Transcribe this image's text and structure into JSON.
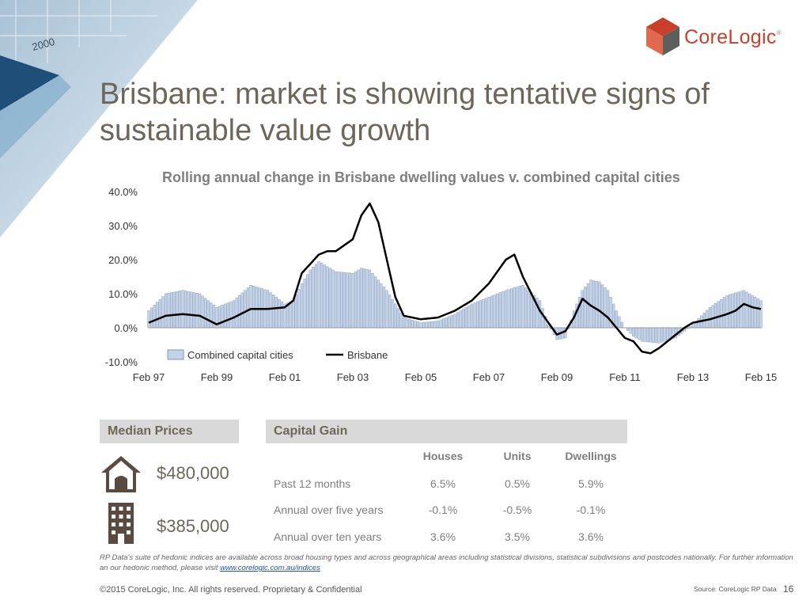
{
  "slide": {
    "title": "Brisbane: market is showing tentative signs of sustainable value growth",
    "logo_text": "CoreLogic",
    "logo_mark": "®",
    "corner_year": "2000",
    "page_number": "16",
    "copyright": "©2015 CoreLogic, Inc. All rights reserved. Proprietary & Confidential",
    "source": "Source: CoreLogic RP Data",
    "note_text": "RP Data's suite of hedonic indices are available across broad housing types and across geographical areas including statistical divisions, statistical subdivisions and postcodes nationally.  For further information an our hedonic method, please visit ",
    "note_link": "www.corelogic.com.au/indices"
  },
  "colors": {
    "title": "#6e6759",
    "bar_fill": "#c5d3e8",
    "bar_stroke": "#7f95b8",
    "line": "#000000",
    "logo": "#c8402b"
  },
  "median_prices": {
    "header": "Median Prices",
    "house_icon": "house-icon",
    "unit_icon": "apartment-building-icon",
    "house_price": "$480,000",
    "unit_price": "$385,000"
  },
  "capital_gain": {
    "header": "Capital Gain",
    "columns": [
      "Houses",
      "Units",
      "Dwellings"
    ],
    "rows": [
      {
        "label": "Past 12 months",
        "values": [
          "6.5%",
          "0.5%",
          "5.9%"
        ]
      },
      {
        "label": "Annual over five years",
        "values": [
          "-0.1%",
          "-0.5%",
          "-0.1%"
        ]
      },
      {
        "label": "Annual over ten years",
        "values": [
          "3.6%",
          "3.5%",
          "3.6%"
        ]
      }
    ]
  },
  "chart_data": {
    "type": "bar",
    "title": "Rolling annual change in Brisbane dwelling values v. combined capital cities",
    "x_labels": [
      "Feb 97",
      "Feb 99",
      "Feb 01",
      "Feb 03",
      "Feb 05",
      "Feb 07",
      "Feb 09",
      "Feb 11",
      "Feb 13",
      "Feb 15"
    ],
    "y_ticks": [
      "-10.0%",
      "0.0%",
      "10.0%",
      "20.0%",
      "30.0%",
      "40.0%"
    ],
    "ylim": [
      -10,
      40
    ],
    "legend": {
      "position": "bottom-left"
    },
    "grid": false,
    "series": [
      {
        "name": "Combined capital cities",
        "type": "bar",
        "points": [
          [
            "1997-02",
            5
          ],
          [
            "1997-08",
            10
          ],
          [
            "1998-02",
            11
          ],
          [
            "1998-08",
            10
          ],
          [
            "1999-02",
            6
          ],
          [
            "1999-08",
            8
          ],
          [
            "2000-02",
            12.5
          ],
          [
            "2000-08",
            11
          ],
          [
            "2001-02",
            7
          ],
          [
            "2001-05",
            8
          ],
          [
            "2001-08",
            13
          ],
          [
            "2001-11",
            17
          ],
          [
            "2002-02",
            19.5
          ],
          [
            "2002-05",
            18
          ],
          [
            "2002-08",
            16.5
          ],
          [
            "2003-02",
            16
          ],
          [
            "2003-05",
            17.5
          ],
          [
            "2003-08",
            17
          ],
          [
            "2004-02",
            11
          ],
          [
            "2004-08",
            3
          ],
          [
            "2005-02",
            1.5
          ],
          [
            "2005-08",
            2
          ],
          [
            "2006-02",
            4
          ],
          [
            "2006-08",
            7
          ],
          [
            "2007-02",
            9
          ],
          [
            "2007-08",
            11
          ],
          [
            "2008-02",
            12.5
          ],
          [
            "2008-08",
            8
          ],
          [
            "2008-11",
            1
          ],
          [
            "2009-02",
            -3.5
          ],
          [
            "2009-05",
            -3
          ],
          [
            "2009-08",
            5
          ],
          [
            "2009-11",
            11
          ],
          [
            "2010-02",
            14
          ],
          [
            "2010-05",
            13.5
          ],
          [
            "2010-08",
            11
          ],
          [
            "2010-11",
            5
          ],
          [
            "2011-02",
            0
          ],
          [
            "2011-05",
            -2.5
          ],
          [
            "2011-08",
            -4
          ],
          [
            "2012-02",
            -4.5
          ],
          [
            "2012-08",
            -3
          ],
          [
            "2013-02",
            1
          ],
          [
            "2013-08",
            6
          ],
          [
            "2014-02",
            9.5
          ],
          [
            "2014-08",
            11
          ],
          [
            "2015-02",
            8
          ]
        ]
      },
      {
        "name": "Brisbane",
        "type": "line",
        "points": [
          [
            "1997-02",
            1.5
          ],
          [
            "1997-08",
            3.5
          ],
          [
            "1998-02",
            4
          ],
          [
            "1998-08",
            3.5
          ],
          [
            "1999-02",
            1
          ],
          [
            "1999-08",
            3
          ],
          [
            "2000-02",
            5.5
          ],
          [
            "2000-08",
            5.5
          ],
          [
            "2001-02",
            6
          ],
          [
            "2001-05",
            8
          ],
          [
            "2001-08",
            16
          ],
          [
            "2002-02",
            21.5
          ],
          [
            "2002-05",
            22.5
          ],
          [
            "2002-08",
            22.5
          ],
          [
            "2003-02",
            26
          ],
          [
            "2003-05",
            33
          ],
          [
            "2003-08",
            36.5
          ],
          [
            "2003-11",
            31
          ],
          [
            "2004-02",
            20
          ],
          [
            "2004-05",
            9
          ],
          [
            "2004-08",
            3.5
          ],
          [
            "2005-02",
            2.5
          ],
          [
            "2005-08",
            3
          ],
          [
            "2006-02",
            5
          ],
          [
            "2006-08",
            8
          ],
          [
            "2007-02",
            13
          ],
          [
            "2007-08",
            20
          ],
          [
            "2007-11",
            21.5
          ],
          [
            "2008-02",
            15
          ],
          [
            "2008-08",
            5
          ],
          [
            "2009-02",
            -2
          ],
          [
            "2009-05",
            -1
          ],
          [
            "2009-08",
            3
          ],
          [
            "2009-11",
            8.5
          ],
          [
            "2010-02",
            6.5
          ],
          [
            "2010-05",
            5
          ],
          [
            "2010-08",
            3
          ],
          [
            "2010-11",
            0
          ],
          [
            "2011-02",
            -3
          ],
          [
            "2011-05",
            -4
          ],
          [
            "2011-08",
            -7
          ],
          [
            "2011-11",
            -7.5
          ],
          [
            "2012-02",
            -6
          ],
          [
            "2012-08",
            -2
          ],
          [
            "2012-11",
            0
          ],
          [
            "2013-02",
            1.5
          ],
          [
            "2013-08",
            2.5
          ],
          [
            "2014-02",
            4
          ],
          [
            "2014-05",
            5
          ],
          [
            "2014-08",
            7
          ],
          [
            "2014-11",
            6
          ],
          [
            "2015-02",
            5.5
          ]
        ]
      }
    ]
  }
}
